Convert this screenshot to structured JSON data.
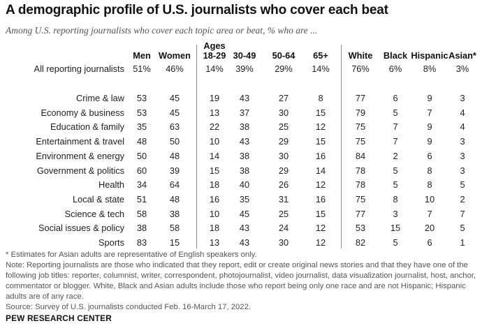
{
  "title": "A demographic profile of U.S. journalists who cover each beat",
  "subtitle": "Among U.S. reporting journalists who cover each topic area or beat, % who are ...",
  "chart_data": {
    "type": "table",
    "column_group_label": "Ages",
    "columns": [
      "Men",
      "Women",
      "18-29",
      "30-49",
      "50-64",
      "65+",
      "White",
      "Black",
      "Hispanic",
      "Asian*"
    ],
    "summary_row": {
      "label": "All reporting journalists",
      "values": [
        "51%",
        "46%",
        "14%",
        "39%",
        "29%",
        "14%",
        "76%",
        "6%",
        "8%",
        "3%"
      ]
    },
    "rows": [
      {
        "label": "Crime & law",
        "values": [
          53,
          45,
          19,
          43,
          27,
          8,
          77,
          6,
          9,
          3
        ]
      },
      {
        "label": "Economy & business",
        "values": [
          53,
          45,
          13,
          37,
          30,
          15,
          79,
          5,
          7,
          4
        ]
      },
      {
        "label": "Education & family",
        "values": [
          35,
          63,
          22,
          38,
          25,
          12,
          75,
          7,
          9,
          4
        ]
      },
      {
        "label": "Entertainment & travel",
        "values": [
          48,
          50,
          10,
          43,
          29,
          15,
          75,
          7,
          9,
          3
        ]
      },
      {
        "label": "Environment & energy",
        "values": [
          50,
          48,
          14,
          38,
          30,
          16,
          84,
          2,
          6,
          3
        ]
      },
      {
        "label": "Government & politics",
        "values": [
          60,
          39,
          15,
          38,
          29,
          14,
          78,
          5,
          8,
          3
        ]
      },
      {
        "label": "Health",
        "values": [
          34,
          64,
          18,
          40,
          26,
          12,
          78,
          5,
          8,
          5
        ]
      },
      {
        "label": "Local & state",
        "values": [
          51,
          48,
          16,
          35,
          31,
          16,
          75,
          8,
          10,
          2
        ]
      },
      {
        "label": "Science & tech",
        "values": [
          58,
          38,
          10,
          45,
          25,
          15,
          77,
          3,
          7,
          7
        ]
      },
      {
        "label": "Social issues & policy",
        "values": [
          38,
          58,
          18,
          43,
          24,
          12,
          53,
          15,
          20,
          5
        ]
      },
      {
        "label": "Sports",
        "values": [
          83,
          15,
          13,
          43,
          30,
          12,
          82,
          5,
          6,
          1
        ]
      }
    ]
  },
  "notes": [
    "* Estimates for Asian adults are representative of English speakers only.",
    "Note: Reporting journalists are those who indicated that they report, edit or create original news stories and that they have one of the following job titles: reporter, columnist, writer, correspondent, photojournalist, video journalist, data visualization journalist, host, anchor, commentator or blogger. White, Black and Asian adults include those who report being only one race and are not Hispanic; Hispanic adults are of any race.",
    "Source: Survey of U.S. journalists conducted Feb. 16-March 17, 2022."
  ],
  "brand": "PEW RESEARCH CENTER"
}
